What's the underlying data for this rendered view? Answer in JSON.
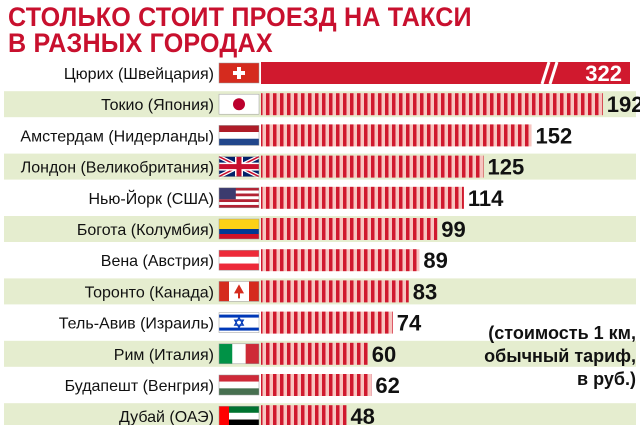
{
  "title_line1": "СТОЛЬКО СТОИТ ПРОЕЗД НА ТАКСИ",
  "title_line2": "В РАЗНЫХ ГОРОДАХ",
  "note": "(стоимость 1 км,\nобычный тариф,\nв руб.)",
  "colors": {
    "accent": "#d0192e",
    "stripe_light": "#f7c5c0",
    "row_band": "#e5edcf"
  },
  "chart_data": {
    "type": "bar",
    "orientation": "horizontal",
    "title": "СТОЛЬКО СТОИТ ПРОЕЗД НА ТАКСИ В РАЗНЫХ ГОРОДАХ",
    "categories": [
      "Цюрих (Швейцария)",
      "Токио (Япония)",
      "Амстердам (Нидерланды)",
      "Лондон (Великобритания)",
      "Нью-Йорк (США)",
      "Богота (Колумбия)",
      "Вена (Австрия)",
      "Торонто (Канада)",
      "Тель-Авив (Израиль)",
      "Рим (Италия)",
      "Будапешт (Венгрия)",
      "Дубай (ОАЭ)"
    ],
    "values": [
      322,
      192,
      152,
      125,
      114,
      99,
      89,
      83,
      74,
      60,
      62,
      48
    ],
    "value_labels": [
      "322",
      "192",
      "152",
      "125",
      "114",
      "99",
      "89",
      "83",
      "74",
      "60",
      "62",
      "48"
    ],
    "flags": [
      "switzerland",
      "japan",
      "netherlands",
      "united-kingdom",
      "usa",
      "colombia",
      "austria",
      "canada",
      "israel",
      "italy",
      "hungary",
      "uae"
    ],
    "broken_axis_for_first_bar": true,
    "unit_note": "(стоимость 1 км, обычный тариф, в руб.)"
  }
}
